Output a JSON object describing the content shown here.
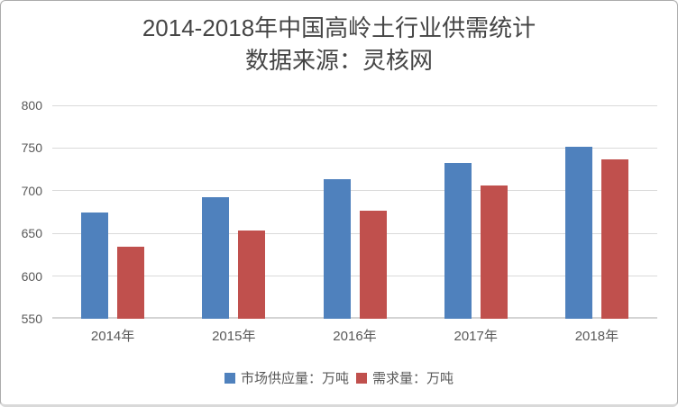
{
  "chart_data": {
    "type": "bar",
    "title": "2014-2018年中国高岭土行业供需统计",
    "subtitle": "数据来源：灵核网",
    "categories": [
      "2014年",
      "2015年",
      "2016年",
      "2017年",
      "2018年"
    ],
    "series": [
      {
        "name": "市场供应量：万吨",
        "color": "#4F81BD",
        "values": [
          675,
          692,
          713,
          732,
          751
        ]
      },
      {
        "name": "需求量：万吨",
        "color": "#C0504D",
        "values": [
          634,
          653,
          677,
          706,
          737
        ]
      }
    ],
    "xlabel": "",
    "ylabel": "",
    "ylim": [
      550,
      800
    ],
    "yticks": [
      550,
      600,
      650,
      700,
      750,
      800
    ],
    "grid": true,
    "legend_position": "bottom",
    "colors": {
      "supply_bar": "#4F81BD",
      "demand_bar": "#C0504D",
      "gridline": "#DADADA",
      "axis_text": "#595959",
      "title_text": "#454545"
    }
  }
}
